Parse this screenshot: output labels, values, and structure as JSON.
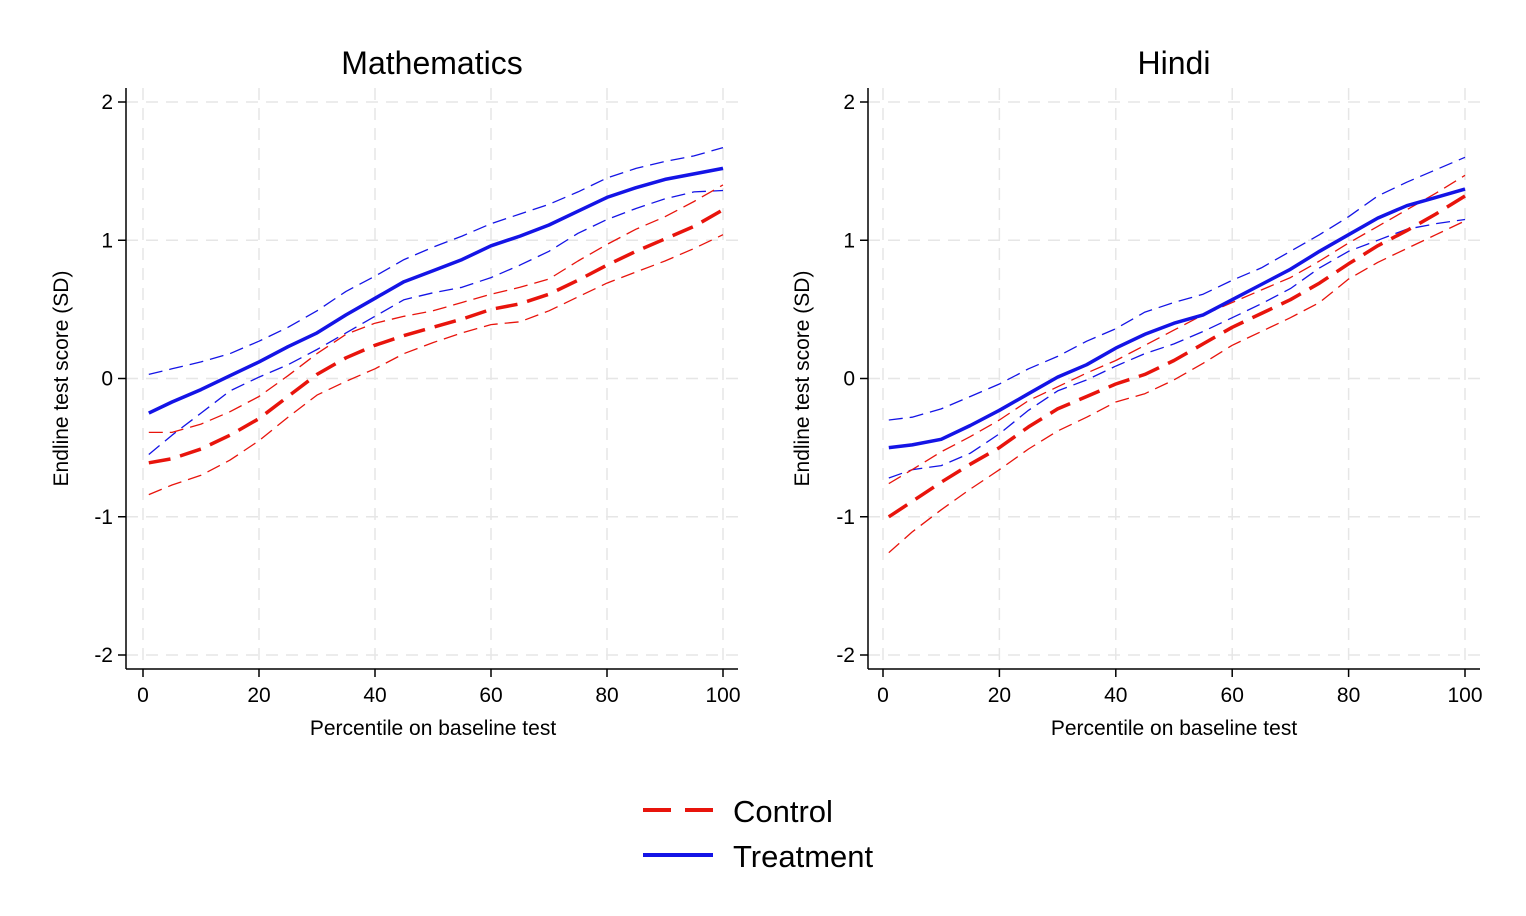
{
  "legend": {
    "placement": "bottom-center",
    "entries": [
      {
        "label": "Control",
        "color": "#e8140c",
        "style": "dashed"
      },
      {
        "label": "Treatment",
        "color": "#1414e6",
        "style": "solid"
      }
    ]
  },
  "chart_data": [
    {
      "type": "line",
      "title": "Mathematics",
      "xlabel": "Percentile on baseline test",
      "ylabel": "Endline test score (SD)",
      "xlim": [
        0,
        100
      ],
      "ylim": [
        -2,
        2
      ],
      "xticks": [
        0,
        20,
        40,
        60,
        80,
        100
      ],
      "yticks": [
        -2,
        -1,
        0,
        1,
        2
      ],
      "xtick_labels": [
        "0",
        "20",
        "40",
        "60",
        "80",
        "100"
      ],
      "ytick_labels": [
        "-2",
        "-1",
        "0",
        "1",
        "2"
      ],
      "grid": true,
      "x": [
        1,
        5,
        10,
        15,
        20,
        25,
        30,
        35,
        40,
        45,
        50,
        55,
        60,
        65,
        70,
        75,
        80,
        85,
        90,
        95,
        100
      ],
      "series": [
        {
          "name": "Control",
          "role": "estimate",
          "color": "#e8140c",
          "values": [
            -0.61,
            -0.58,
            -0.51,
            -0.41,
            -0.29,
            -0.13,
            0.03,
            0.15,
            0.24,
            0.31,
            0.37,
            0.43,
            0.5,
            0.54,
            0.61,
            0.71,
            0.82,
            0.92,
            1.01,
            1.1,
            1.22
          ]
        },
        {
          "role": "upper_ci",
          "color": "#e8140c",
          "values": [
            -0.39,
            -0.39,
            -0.33,
            -0.24,
            -0.13,
            0.02,
            0.18,
            0.32,
            0.4,
            0.45,
            0.49,
            0.55,
            0.61,
            0.66,
            0.72,
            0.85,
            0.97,
            1.08,
            1.17,
            1.28,
            1.4
          ]
        },
        {
          "role": "lower_ci",
          "color": "#e8140c",
          "values": [
            -0.84,
            -0.77,
            -0.7,
            -0.59,
            -0.45,
            -0.28,
            -0.12,
            -0.02,
            0.07,
            0.18,
            0.26,
            0.33,
            0.39,
            0.41,
            0.49,
            0.59,
            0.69,
            0.77,
            0.85,
            0.94,
            1.04
          ]
        },
        {
          "name": "Treatment",
          "role": "estimate",
          "color": "#1414e6",
          "values": [
            -0.25,
            -0.17,
            -0.08,
            0.02,
            0.12,
            0.23,
            0.33,
            0.46,
            0.58,
            0.7,
            0.78,
            0.86,
            0.96,
            1.03,
            1.11,
            1.21,
            1.31,
            1.38,
            1.44,
            1.48,
            1.52
          ]
        },
        {
          "role": "upper_ci",
          "color": "#1414e6",
          "values": [
            0.03,
            0.07,
            0.12,
            0.18,
            0.27,
            0.37,
            0.49,
            0.63,
            0.74,
            0.86,
            0.95,
            1.03,
            1.12,
            1.19,
            1.26,
            1.35,
            1.45,
            1.52,
            1.57,
            1.61,
            1.67
          ]
        },
        {
          "role": "lower_ci",
          "color": "#1414e6",
          "values": [
            -0.55,
            -0.41,
            -0.25,
            -0.09,
            0.01,
            0.1,
            0.21,
            0.33,
            0.45,
            0.57,
            0.62,
            0.66,
            0.73,
            0.82,
            0.92,
            1.05,
            1.15,
            1.23,
            1.3,
            1.35,
            1.36
          ]
        }
      ]
    },
    {
      "type": "line",
      "title": "Hindi",
      "xlabel": "Percentile on baseline test",
      "ylabel": "Endline test score (SD)",
      "xlim": [
        0,
        100
      ],
      "ylim": [
        -2,
        2
      ],
      "xticks": [
        0,
        20,
        40,
        60,
        80,
        100
      ],
      "yticks": [
        -2,
        -1,
        0,
        1,
        2
      ],
      "xtick_labels": [
        "0",
        "20",
        "40",
        "60",
        "80",
        "100"
      ],
      "ytick_labels": [
        "-2",
        "-1",
        "0",
        "1",
        "2"
      ],
      "grid": true,
      "x": [
        1,
        5,
        10,
        15,
        20,
        25,
        30,
        35,
        40,
        45,
        50,
        55,
        60,
        65,
        70,
        75,
        80,
        85,
        90,
        95,
        100
      ],
      "series": [
        {
          "name": "Control",
          "role": "estimate",
          "color": "#e8140c",
          "values": [
            -1.0,
            -0.89,
            -0.75,
            -0.62,
            -0.5,
            -0.35,
            -0.22,
            -0.13,
            -0.04,
            0.03,
            0.13,
            0.25,
            0.37,
            0.47,
            0.57,
            0.69,
            0.83,
            0.96,
            1.07,
            1.19,
            1.32
          ]
        },
        {
          "role": "upper_ci",
          "color": "#e8140c",
          "values": [
            -0.76,
            -0.66,
            -0.53,
            -0.42,
            -0.3,
            -0.16,
            -0.06,
            0.04,
            0.13,
            0.24,
            0.35,
            0.46,
            0.55,
            0.64,
            0.73,
            0.85,
            0.98,
            1.1,
            1.22,
            1.34,
            1.47
          ]
        },
        {
          "role": "lower_ci",
          "color": "#e8140c",
          "values": [
            -1.26,
            -1.11,
            -0.95,
            -0.8,
            -0.66,
            -0.51,
            -0.38,
            -0.28,
            -0.17,
            -0.11,
            -0.01,
            0.11,
            0.24,
            0.34,
            0.44,
            0.55,
            0.72,
            0.84,
            0.94,
            1.04,
            1.14
          ]
        },
        {
          "name": "Treatment",
          "role": "estimate",
          "color": "#1414e6",
          "values": [
            -0.5,
            -0.48,
            -0.44,
            -0.34,
            -0.23,
            -0.11,
            0.01,
            0.1,
            0.22,
            0.32,
            0.4,
            0.46,
            0.57,
            0.68,
            0.79,
            0.92,
            1.04,
            1.16,
            1.25,
            1.31,
            1.37
          ]
        },
        {
          "role": "upper_ci",
          "color": "#1414e6",
          "values": [
            -0.3,
            -0.28,
            -0.22,
            -0.13,
            -0.04,
            0.07,
            0.16,
            0.27,
            0.36,
            0.48,
            0.55,
            0.61,
            0.71,
            0.8,
            0.92,
            1.04,
            1.17,
            1.32,
            1.42,
            1.51,
            1.6
          ]
        },
        {
          "role": "lower_ci",
          "color": "#1414e6",
          "values": [
            -0.72,
            -0.66,
            -0.63,
            -0.54,
            -0.4,
            -0.23,
            -0.09,
            -0.01,
            0.09,
            0.18,
            0.25,
            0.34,
            0.44,
            0.54,
            0.65,
            0.8,
            0.92,
            1.0,
            1.08,
            1.12,
            1.15
          ]
        }
      ]
    }
  ]
}
